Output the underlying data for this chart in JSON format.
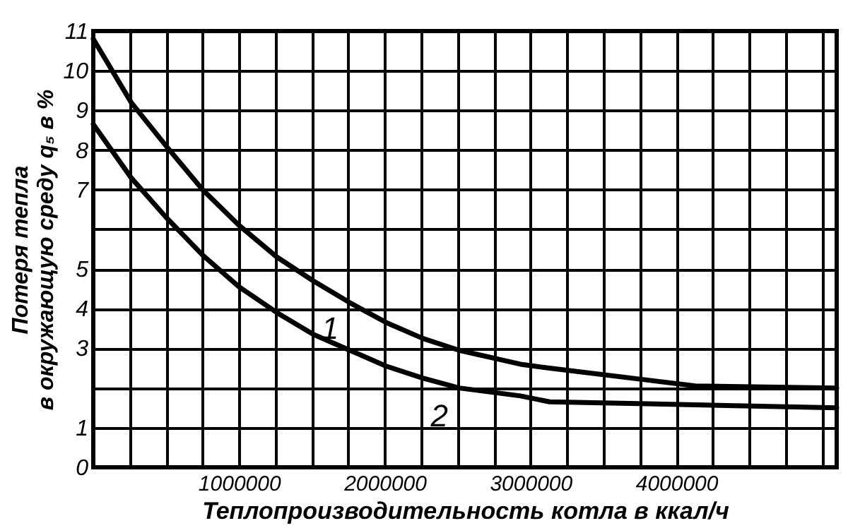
{
  "chart_data": {
    "type": "line",
    "xlabel": "Теплопроизводительность котла в ккал/ч",
    "ylabel": "Потеря тепла\nв окружающую среду q₅ в %",
    "xlim": [
      0,
      5100000
    ],
    "xticks": [
      {
        "value": 0,
        "label": null
      },
      {
        "value": 250000,
        "label": null
      },
      {
        "value": 500000,
        "label": null
      },
      {
        "value": 750000,
        "label": null
      },
      1000000,
      {
        "value": 1250000,
        "label": null
      },
      {
        "value": 1500000,
        "label": null
      },
      {
        "value": 1750000,
        "label": null
      },
      2000000,
      {
        "value": 2250000,
        "label": null
      },
      {
        "value": 2500000,
        "label": null
      },
      {
        "value": 2750000,
        "label": null
      },
      3000000,
      {
        "value": 3250000,
        "label": null
      },
      {
        "value": 3500000,
        "label": null
      },
      {
        "value": 3750000,
        "label": null
      },
      4000000,
      {
        "value": 4250000,
        "label": null
      },
      {
        "value": 4500000,
        "label": null
      },
      {
        "value": 4750000,
        "label": null
      },
      {
        "value": 5000000,
        "label": null
      }
    ],
    "ylim": [
      0,
      11
    ],
    "yticks": [
      0,
      1,
      {
        "value": 2,
        "label": null
      },
      3,
      4,
      5,
      {
        "value": 6,
        "label": null
      },
      7,
      8,
      9,
      10,
      11
    ],
    "grid": true,
    "series": [
      {
        "color": "#000000",
        "x": [
          0,
          260000,
          500000,
          750000,
          1000000,
          1260000,
          1510000,
          1760000,
          2010000,
          2260000,
          2510000,
          2930000,
          3130000,
          3800000,
          4130000,
          5100000
        ],
        "values": [
          10.8,
          9.2,
          8.1,
          7.0,
          6.1,
          5.3,
          4.7,
          4.15,
          3.65,
          3.25,
          2.95,
          2.6,
          2.5,
          2.2,
          2.05,
          2.0
        ]
      },
      {
        "color": "#000000",
        "x": [
          0,
          260000,
          500000,
          750000,
          1000000,
          1260000,
          1510000,
          1760000,
          2010000,
          2260000,
          2510000,
          2930000,
          3130000,
          3800000,
          5100000
        ],
        "values": [
          8.65,
          7.3,
          6.3,
          5.35,
          4.55,
          3.9,
          3.35,
          2.95,
          2.55,
          2.25,
          2.0,
          1.8,
          1.65,
          1.6,
          1.5
        ]
      }
    ],
    "annotations": [
      {
        "text": "1",
        "x": 1760000,
        "y": 4.2
      },
      {
        "text": "2",
        "x": 2510000,
        "y": 2.0
      }
    ]
  }
}
